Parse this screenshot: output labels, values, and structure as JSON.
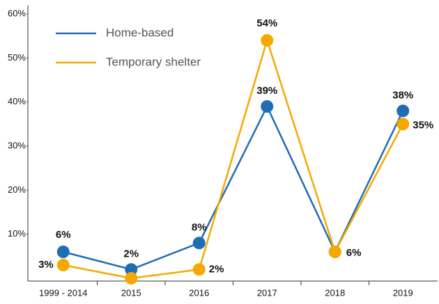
{
  "chart_data": {
    "type": "line",
    "categories": [
      "1999 - 2014",
      "2015",
      "2016",
      "2017",
      "2018",
      "2019"
    ],
    "series": [
      {
        "name": "Home-based",
        "color": "#1f6db5",
        "values": [
          6,
          2,
          8,
          39,
          6,
          38
        ],
        "value_labels": [
          "6%",
          "2%",
          "8%",
          "39%",
          "6%",
          "38%"
        ]
      },
      {
        "name": "Temporary shelter",
        "color": "#f5a800",
        "values": [
          3,
          0,
          2,
          54,
          6,
          35
        ],
        "value_labels": [
          "3%",
          null,
          "2%",
          "54%",
          null,
          "35%"
        ]
      }
    ],
    "ylim": [
      0,
      60
    ],
    "yticks": [
      {
        "value": 10,
        "label": "10%"
      },
      {
        "value": 20,
        "label": "20%"
      },
      {
        "value": 30,
        "label": "30%"
      },
      {
        "value": 40,
        "label": "40%"
      },
      {
        "value": 50,
        "label": "50%"
      },
      {
        "value": 60,
        "label": "60%"
      }
    ],
    "legend": "top-left"
  }
}
